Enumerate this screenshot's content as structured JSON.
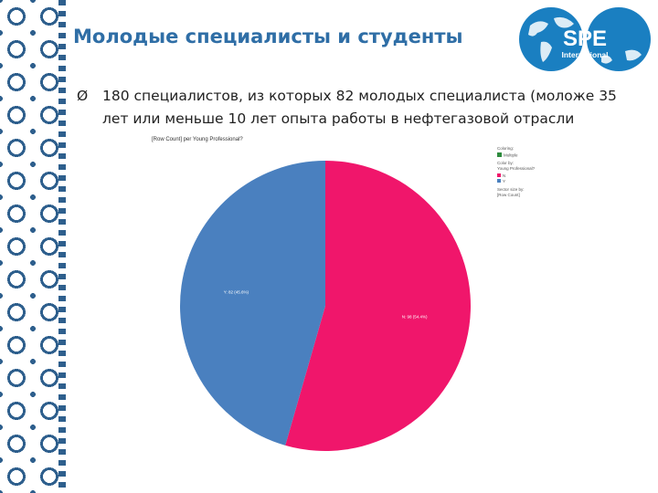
{
  "slide": {
    "title": "Молодые специалисты и студенты",
    "bullet_marker": "Ø",
    "bullet_text": "180 специалистов, из которых 82 молодых специалиста (моложе 35 лет или меньше 10 лет опыта работы в нефтегазовой отрасли"
  },
  "logo": {
    "name": "SPE",
    "subtitle": "International",
    "colors": {
      "blue": "#1a7fc1",
      "white": "#ffffff"
    }
  },
  "chart_data": {
    "type": "pie",
    "title": "[Row Count] per Young Professional?",
    "legend_position": "top-right",
    "legend": {
      "coloring_label": "Coloring:",
      "coloring_value": "Multiple",
      "color_by_label": "Color by:",
      "color_by_value": "Young Professional?",
      "slices_label": "Sector size by:",
      "slices_value": "[Row Count]"
    },
    "slices": [
      {
        "name": "N",
        "value": 98,
        "label": "N: 98 (54.4%)",
        "color": "#f0166b"
      },
      {
        "name": "Y",
        "value": 82,
        "label": "Y: 82 (45.6%)",
        "color": "#4a80bf"
      }
    ],
    "total": 180
  }
}
